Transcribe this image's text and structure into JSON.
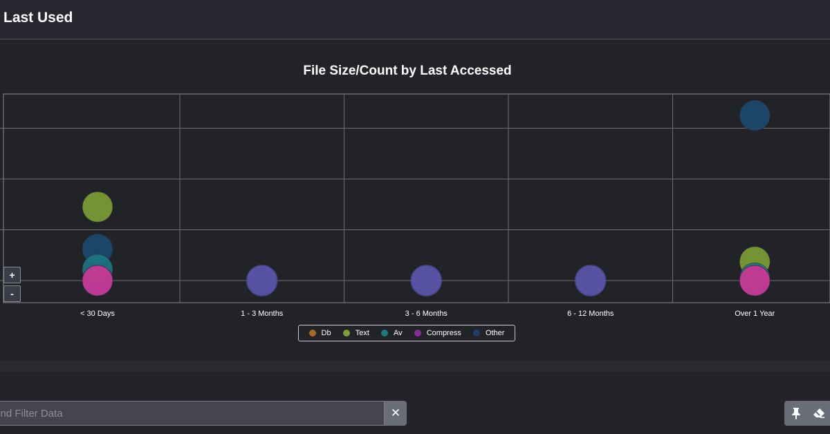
{
  "header": {
    "title": "Last Used"
  },
  "filter": {
    "placeholder": "Find Filter Data",
    "clear_glyph": "✕"
  },
  "zoom": {
    "in_label": "+",
    "out_label": "-"
  },
  "toolbar": {
    "pin_icon": "pin-icon",
    "eraser_icon": "eraser-icon"
  },
  "colors": {
    "Db": "#a86b26",
    "Text": "#7d9e3a",
    "Av": "#1d7a7c",
    "Compress": "#8c2b9a",
    "Other": "#1f3e64",
    "Compress_fill": "#c2359f",
    "Other_fill": "#1c4a6e",
    "Av_fill": "#1b7682",
    "Text_fill": "#7fa035",
    "neutral_fill": "#5a55a8"
  },
  "chart_data": {
    "type": "scatter",
    "title": "File Size/Count by Last Accessed",
    "xlabel": "",
    "ylabel": "",
    "categories": [
      "< 30 Days",
      "1 - 3 Months",
      "3 - 6 Months",
      "6 - 12 Months",
      "Over 1 Year"
    ],
    "y_gridlines": 4,
    "ylim": [
      0,
      4.3
    ],
    "legend": [
      "Db",
      "Text",
      "Av",
      "Compress",
      "Other"
    ],
    "legend_position": "bottom-center",
    "grid": true,
    "series": [
      {
        "name": "Db",
        "values": [
          0.0,
          0.0,
          0.0,
          0.0,
          0.0
        ]
      },
      {
        "name": "Text",
        "values": [
          1.45,
          0.0,
          0.0,
          0.0,
          0.37
        ]
      },
      {
        "name": "Av",
        "values": [
          0.22,
          0.0,
          0.0,
          0.0,
          0.05
        ]
      },
      {
        "name": "Compress",
        "values": [
          0.0,
          0.0,
          0.0,
          0.0,
          0.0
        ]
      },
      {
        "name": "Other",
        "values": [
          0.62,
          0.0,
          0.0,
          0.0,
          3.25
        ]
      }
    ]
  }
}
